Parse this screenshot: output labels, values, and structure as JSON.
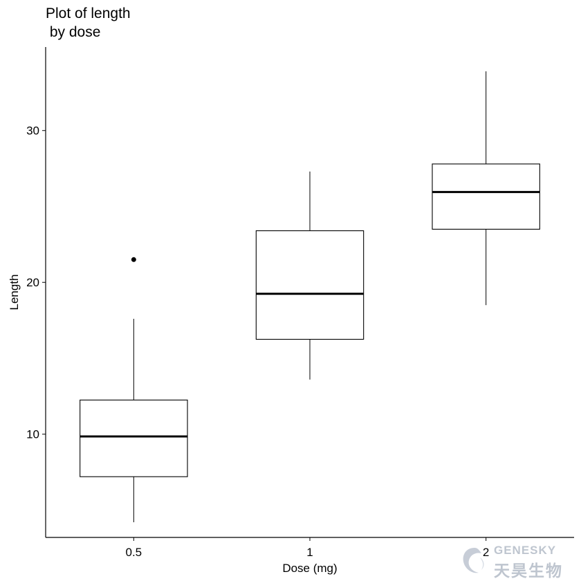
{
  "chart_data": {
    "type": "boxplot",
    "title": "Plot of length\n by dose",
    "title_lines": [
      "Plot of length",
      " by dose"
    ],
    "xlabel": "Dose (mg)",
    "ylabel": "Length",
    "categories": [
      "0.5",
      "1",
      "2"
    ],
    "ylim": [
      3.2,
      35.5
    ],
    "yticks": [
      10,
      20,
      30
    ],
    "grid": false,
    "legend": "none",
    "boxes": [
      {
        "category": "0.5",
        "whisker_low": 4.2,
        "q1": 7.2,
        "median": 9.85,
        "q3": 12.25,
        "whisker_high": 17.6,
        "outliers": [
          21.5
        ]
      },
      {
        "category": "1",
        "whisker_low": 13.6,
        "q1": 16.25,
        "median": 19.25,
        "q3": 23.4,
        "whisker_high": 27.3,
        "outliers": []
      },
      {
        "category": "2",
        "whisker_low": 18.5,
        "q1": 23.5,
        "median": 25.95,
        "q3": 27.8,
        "whisker_high": 33.9,
        "outliers": []
      }
    ]
  },
  "watermark": {
    "line1": "GENESKY",
    "line2": "天昊生物"
  }
}
